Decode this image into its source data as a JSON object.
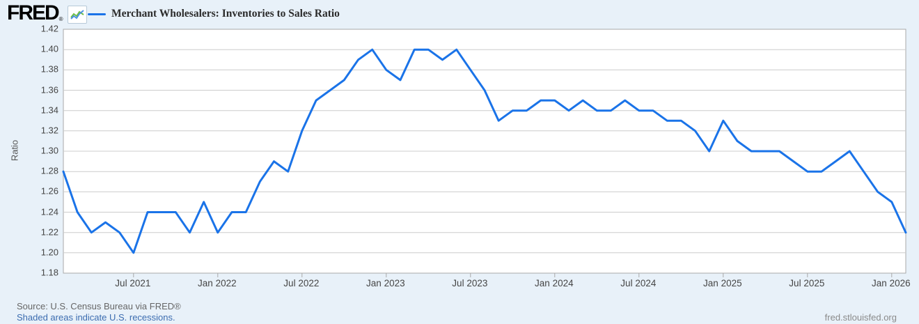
{
  "colors": {
    "background": "#e8f1f9",
    "series_line": "#1a73e8",
    "sparkline_blue": "#4a90e2",
    "sparkline_green": "#6cbd45",
    "link_blue": "#3b6cb0"
  },
  "header": {
    "logo_text": "FRED",
    "registered_mark": "®",
    "legend_label": "Merchant Wholesalers: Inventories to Sales Ratio"
  },
  "footer": {
    "source_line": "Source: U.S. Census Bureau via FRED®",
    "recession_note": "Shaded areas indicate U.S. recessions.",
    "site_link": "fred.stlouisfed.org"
  },
  "chart_data": {
    "type": "line",
    "title": "Merchant Wholesalers: Inventories to Sales Ratio",
    "ylabel": "Ratio",
    "ylim": [
      1.18,
      1.42
    ],
    "y_ticks": [
      1.18,
      1.2,
      1.22,
      1.24,
      1.26,
      1.28,
      1.3,
      1.32,
      1.34,
      1.36,
      1.38,
      1.4,
      1.42
    ],
    "grid": "horizontal-only",
    "legend_position": "top-left",
    "line_color": "#1a73e8",
    "frequency": "monthly",
    "x_dates": [
      "2021-02",
      "2021-03",
      "2021-04",
      "2021-05",
      "2021-06",
      "2021-07",
      "2021-08",
      "2021-09",
      "2021-10",
      "2021-11",
      "2021-12",
      "2022-01",
      "2022-02",
      "2022-03",
      "2022-04",
      "2022-05",
      "2022-06",
      "2022-07",
      "2022-08",
      "2022-09",
      "2022-10",
      "2022-11",
      "2022-12",
      "2023-01",
      "2023-02",
      "2023-03",
      "2023-04",
      "2023-05",
      "2023-06",
      "2023-07",
      "2023-08",
      "2023-09",
      "2023-10",
      "2023-11",
      "2023-12",
      "2024-01",
      "2024-02",
      "2024-03",
      "2024-04",
      "2024-05",
      "2024-06",
      "2024-07",
      "2024-08",
      "2024-09",
      "2024-10",
      "2024-11",
      "2024-12",
      "2025-01",
      "2025-02",
      "2025-03",
      "2025-04",
      "2025-05",
      "2025-06",
      "2025-07",
      "2025-08",
      "2025-09",
      "2025-10",
      "2025-11",
      "2025-12",
      "2026-01",
      "2026-02"
    ],
    "values": [
      1.28,
      1.24,
      1.22,
      1.23,
      1.22,
      1.2,
      1.24,
      1.24,
      1.24,
      1.22,
      1.25,
      1.22,
      1.24,
      1.24,
      1.27,
      1.29,
      1.28,
      1.32,
      1.35,
      1.36,
      1.37,
      1.39,
      1.4,
      1.38,
      1.37,
      1.4,
      1.4,
      1.39,
      1.4,
      1.38,
      1.36,
      1.33,
      1.34,
      1.34,
      1.35,
      1.35,
      1.34,
      1.35,
      1.34,
      1.34,
      1.35,
      1.34,
      1.34,
      1.33,
      1.33,
      1.32,
      1.3,
      1.33,
      1.31,
      1.3,
      1.3,
      1.3,
      1.29,
      1.28,
      1.28,
      1.29,
      1.3,
      1.28,
      1.26,
      1.25,
      1.22
    ],
    "x_tick_labels": [
      "Jul 2021",
      "Jan 2022",
      "Jul 2022",
      "Jan 2023",
      "Jul 2023",
      "Jan 2024",
      "Jul 2024",
      "Jan 2025",
      "Jul 2025",
      "Jan 2026"
    ],
    "x_tick_month_indices": [
      5,
      11,
      17,
      23,
      29,
      35,
      41,
      47,
      53,
      59
    ]
  }
}
